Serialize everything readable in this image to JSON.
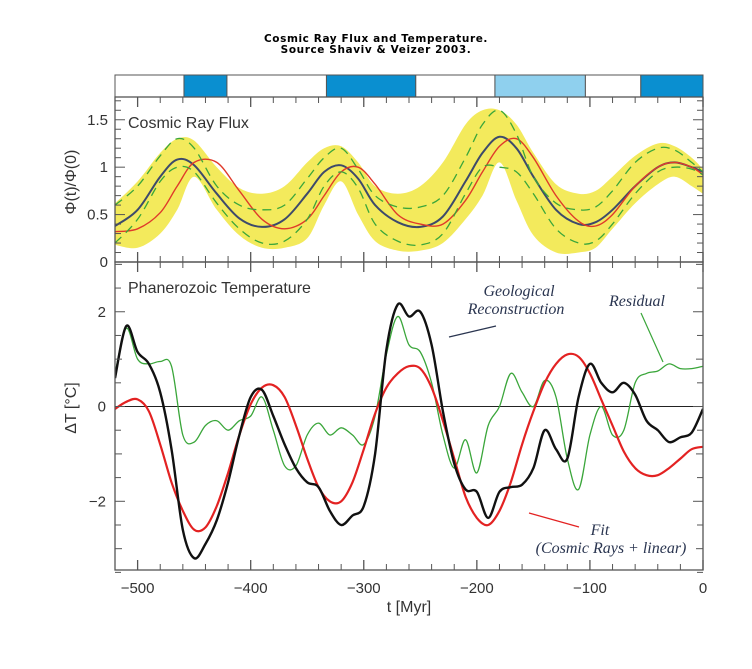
{
  "chart_data": [
    {
      "type": "table",
      "title": "Cosmic Ray Flux and Temperature.",
      "subtitle": "Source Shaviv & Veizer 2003.",
      "description_key": "spiral-arm-passages",
      "xlim": [
        -520,
        0
      ],
      "segments": [
        {
          "from": -520,
          "to": -459,
          "color": "#ffffff"
        },
        {
          "from": -459,
          "to": -421,
          "color": "#0a8fd0"
        },
        {
          "from": -421,
          "to": -333,
          "color": "#ffffff"
        },
        {
          "from": -333,
          "to": -254,
          "color": "#0a8fd0"
        },
        {
          "from": -254,
          "to": -184,
          "color": "#ffffff"
        },
        {
          "from": -184,
          "to": -104,
          "color": "#8fd0ee"
        },
        {
          "from": -104,
          "to": -55,
          "color": "#ffffff"
        },
        {
          "from": -55,
          "to": 0,
          "color": "#0a8fd0"
        }
      ]
    },
    {
      "type": "line",
      "panel_label": "Cosmic Ray Flux",
      "ylabel": "Φ(t)/Φ(0)",
      "xlim": [
        -520,
        0
      ],
      "ylim": [
        0,
        1.74
      ],
      "yticks": [
        0,
        0.5,
        1,
        1.5
      ],
      "ytick_labels": [
        "0",
        "0.5",
        "1",
        "1.5"
      ],
      "x": [
        -520,
        -500,
        -480,
        -465,
        -450,
        -430,
        -410,
        -390,
        -370,
        -350,
        -335,
        -320,
        -305,
        -290,
        -270,
        -250,
        -230,
        -210,
        -195,
        -180,
        -165,
        -150,
        -130,
        -110,
        -95,
        -80,
        -60,
        -40,
        -25,
        -10,
        0
      ],
      "band_upper": [
        0.62,
        0.85,
        1.15,
        1.3,
        1.28,
        1.0,
        0.78,
        0.72,
        0.8,
        1.05,
        1.2,
        1.22,
        1.05,
        0.8,
        0.72,
        0.8,
        1.05,
        1.45,
        1.6,
        1.6,
        1.45,
        1.15,
        0.82,
        0.72,
        0.75,
        0.9,
        1.12,
        1.25,
        1.22,
        1.1,
        0.98
      ],
      "band_lower": [
        0.18,
        0.15,
        0.3,
        0.55,
        0.9,
        0.55,
        0.28,
        0.15,
        0.15,
        0.25,
        0.6,
        0.85,
        0.5,
        0.22,
        0.12,
        0.12,
        0.2,
        0.45,
        0.7,
        1.05,
        0.65,
        0.28,
        0.1,
        0.1,
        0.15,
        0.35,
        0.62,
        0.82,
        0.9,
        0.8,
        0.72
      ],
      "series": [
        {
          "name": "Cosmic Ray Flux (mean)",
          "color": "#3d4a6b",
          "style": "solid",
          "values": [
            0.38,
            0.55,
            0.9,
            1.08,
            1.02,
            0.72,
            0.46,
            0.37,
            0.45,
            0.72,
            0.95,
            1.02,
            0.88,
            0.6,
            0.42,
            0.37,
            0.48,
            0.85,
            1.15,
            1.32,
            1.2,
            0.9,
            0.55,
            0.4,
            0.42,
            0.55,
            0.8,
            1.0,
            1.05,
            1.0,
            0.95
          ]
        },
        {
          "name": "Cosmic Ray Flux (shifted)",
          "color": "#e03a2a",
          "style": "solid",
          "values": [
            0.32,
            0.35,
            0.52,
            0.8,
            1.05,
            1.05,
            0.75,
            0.45,
            0.35,
            0.45,
            0.7,
            0.95,
            1.0,
            0.82,
            0.5,
            0.4,
            0.4,
            0.65,
            0.95,
            1.22,
            1.3,
            1.1,
            0.7,
            0.43,
            0.38,
            0.5,
            0.8,
            1.0,
            1.05,
            1.0,
            0.92
          ]
        },
        {
          "name": "Upper bound",
          "color": "#3aa63a",
          "style": "dashed",
          "values": [
            0.6,
            0.8,
            1.12,
            1.3,
            1.2,
            0.8,
            0.6,
            0.55,
            0.6,
            0.88,
            1.1,
            1.2,
            0.98,
            0.7,
            0.58,
            0.58,
            0.7,
            1.1,
            1.45,
            1.6,
            1.35,
            0.9,
            0.62,
            0.55,
            0.58,
            0.75,
            1.05,
            1.2,
            1.18,
            1.05,
            0.95
          ]
        },
        {
          "name": "Lower bound",
          "color": "#3aa63a",
          "style": "dashed",
          "values": [
            0.2,
            0.45,
            0.85,
            1.0,
            0.95,
            0.62,
            0.35,
            0.2,
            0.22,
            0.45,
            0.8,
            0.95,
            0.78,
            0.4,
            0.22,
            0.18,
            0.3,
            0.72,
            1.0,
            1.0,
            0.95,
            0.72,
            0.35,
            0.2,
            0.22,
            0.4,
            0.72,
            0.95,
            1.0,
            0.98,
            0.92
          ]
        }
      ]
    },
    {
      "type": "line",
      "panel_label": "Phanerozoic Temperature",
      "xlabel": "t [Myr]",
      "ylabel": "ΔT [°C]",
      "xlim": [
        -520,
        0
      ],
      "ylim": [
        -3.45,
        3.05
      ],
      "xticks": [
        -500,
        -400,
        -300,
        -200,
        -100,
        0
      ],
      "xtick_labels": [
        "−500",
        "−400",
        "−300",
        "−200",
        "−100",
        "0"
      ],
      "yticks": [
        -2,
        0,
        2
      ],
      "ytick_labels": [
        "−2",
        "0",
        "2"
      ],
      "zero_line": true,
      "annotations": [
        {
          "text": "Geological",
          "series": "Geological Reconstruction"
        },
        {
          "text": "Reconstruction",
          "series": "Geological Reconstruction"
        },
        {
          "text": "Residual",
          "series": "Residual"
        },
        {
          "text": "Fit",
          "series": "Fit"
        },
        {
          "text": "(Cosmic Rays + linear)",
          "series": "Fit"
        }
      ],
      "x": [
        -520,
        -510,
        -500,
        -490,
        -480,
        -470,
        -460,
        -450,
        -440,
        -430,
        -420,
        -410,
        -400,
        -390,
        -380,
        -370,
        -360,
        -350,
        -340,
        -330,
        -320,
        -310,
        -300,
        -290,
        -280,
        -270,
        -260,
        -250,
        -240,
        -230,
        -220,
        -210,
        -200,
        -190,
        -180,
        -170,
        -160,
        -150,
        -140,
        -130,
        -120,
        -110,
        -100,
        -90,
        -80,
        -70,
        -60,
        -50,
        -40,
        -30,
        -20,
        -10,
        0
      ],
      "series": [
        {
          "name": "Geological Reconstruction",
          "color": "#111111",
          "values": [
            0.6,
            1.7,
            1.15,
            0.9,
            0.3,
            -0.9,
            -2.6,
            -3.2,
            -2.9,
            -2.4,
            -1.6,
            -0.6,
            0.2,
            0.35,
            -0.2,
            -0.8,
            -1.3,
            -1.6,
            -1.7,
            -2.2,
            -2.5,
            -2.3,
            -2.1,
            -1.0,
            1.2,
            2.15,
            1.9,
            2.0,
            1.3,
            -0.1,
            -1.2,
            -1.75,
            -1.8,
            -2.35,
            -1.8,
            -1.7,
            -1.65,
            -1.3,
            -0.5,
            -0.9,
            -1.1,
            0.2,
            0.9,
            0.5,
            0.3,
            0.5,
            0.25,
            -0.3,
            -0.5,
            -0.75,
            -0.65,
            -0.55,
            -0.05
          ]
        },
        {
          "name": "Residual",
          "color": "#3aa63a",
          "values": [
            0.7,
            1.65,
            1.0,
            0.9,
            0.95,
            0.85,
            -0.6,
            -0.75,
            -0.4,
            -0.3,
            -0.5,
            -0.3,
            -0.2,
            0.2,
            -0.5,
            -1.25,
            -1.25,
            -0.6,
            -0.35,
            -0.6,
            -0.45,
            -0.6,
            -0.8,
            -0.2,
            1.1,
            1.9,
            1.3,
            1.15,
            0.5,
            -0.6,
            -1.3,
            -0.7,
            -1.4,
            -0.4,
            0.0,
            0.7,
            0.3,
            0.0,
            0.55,
            0.2,
            -1.1,
            -1.75,
            -0.6,
            0.0,
            -0.6,
            -0.5,
            0.5,
            0.7,
            0.75,
            0.9,
            0.8,
            0.8,
            0.85
          ]
        },
        {
          "name": "Fit",
          "color": "#e32222",
          "values": [
            -0.05,
            0.1,
            0.15,
            -0.1,
            -0.8,
            -1.6,
            -2.2,
            -2.6,
            -2.55,
            -2.1,
            -1.4,
            -0.6,
            0.05,
            0.4,
            0.45,
            0.2,
            -0.4,
            -1.1,
            -1.7,
            -2.0,
            -2.0,
            -1.6,
            -0.9,
            -0.15,
            0.4,
            0.7,
            0.85,
            0.8,
            0.4,
            -0.3,
            -1.1,
            -1.9,
            -2.35,
            -2.5,
            -2.2,
            -1.6,
            -0.8,
            -0.1,
            0.5,
            0.9,
            1.1,
            1.05,
            0.7,
            0.15,
            -0.4,
            -0.95,
            -1.3,
            -1.45,
            -1.45,
            -1.3,
            -1.1,
            -0.9,
            -0.85
          ]
        }
      ]
    }
  ],
  "header": {
    "title": "Cosmic Ray Flux and Temperature.",
    "subtitle": "Source Shaviv & Veizer 2003."
  }
}
